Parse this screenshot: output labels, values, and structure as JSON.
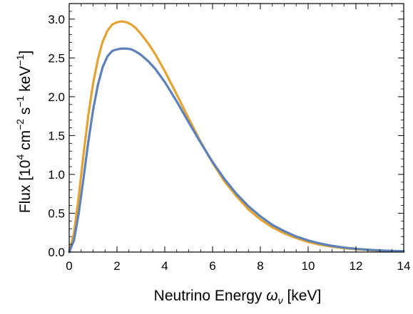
{
  "chart_data": {
    "type": "line",
    "title": "",
    "xlabel": {
      "main": "Neutrino Energy ",
      "omega": "ω",
      "omega_sub": "ν",
      "unit": " [keV]"
    },
    "ylabel": {
      "part1": "Flux  [10",
      "sup1": "4",
      "part2": " cm",
      "sup2": "−2",
      "part3": " s",
      "sup3": "−1",
      "part4": " keV",
      "sup4": "−1",
      "part5": "]"
    },
    "xlim": [
      0,
      14
    ],
    "ylim": [
      0,
      3.2
    ],
    "xticks": [
      0,
      2,
      4,
      6,
      8,
      10,
      12,
      14
    ],
    "xtick_labels": [
      "0",
      "2",
      "4",
      "6",
      "8",
      "10",
      "12",
      "14"
    ],
    "yticks": [
      0.0,
      0.5,
      1.0,
      1.5,
      2.0,
      2.5,
      3.0
    ],
    "ytick_labels": [
      "0.0",
      "0.5",
      "1.0",
      "1.5",
      "2.0",
      "2.5",
      "3.0"
    ],
    "grid": false,
    "legend": "none",
    "x": [
      0,
      0.2,
      0.4,
      0.6,
      0.8,
      1.0,
      1.2,
      1.4,
      1.6,
      1.8,
      2.0,
      2.2,
      2.4,
      2.6,
      2.8,
      3.0,
      3.3,
      3.6,
      4.0,
      4.5,
      5.0,
      5.5,
      6.0,
      6.5,
      7.0,
      7.5,
      8.0,
      8.5,
      9.0,
      9.5,
      10.0,
      10.5,
      11.0,
      11.5,
      12.0,
      12.5,
      13.0,
      13.5,
      14.0
    ],
    "series": [
      {
        "color": "#e3a232",
        "values": [
          0.0,
          0.24,
          0.72,
          1.26,
          1.76,
          2.17,
          2.48,
          2.71,
          2.85,
          2.93,
          2.96,
          2.97,
          2.96,
          2.93,
          2.88,
          2.81,
          2.69,
          2.55,
          2.33,
          2.03,
          1.72,
          1.42,
          1.15,
          0.91,
          0.72,
          0.55,
          0.42,
          0.32,
          0.24,
          0.18,
          0.13,
          0.095,
          0.07,
          0.05,
          0.036,
          0.026,
          0.018,
          0.013,
          0.009
        ]
      },
      {
        "color": "#5c81b9",
        "values": [
          0.0,
          0.15,
          0.5,
          0.95,
          1.42,
          1.83,
          2.15,
          2.38,
          2.52,
          2.59,
          2.61,
          2.62,
          2.62,
          2.61,
          2.58,
          2.54,
          2.46,
          2.36,
          2.19,
          1.94,
          1.67,
          1.41,
          1.16,
          0.94,
          0.75,
          0.59,
          0.46,
          0.35,
          0.27,
          0.2,
          0.15,
          0.11,
          0.08,
          0.058,
          0.042,
          0.03,
          0.021,
          0.015,
          0.01
        ]
      }
    ]
  }
}
